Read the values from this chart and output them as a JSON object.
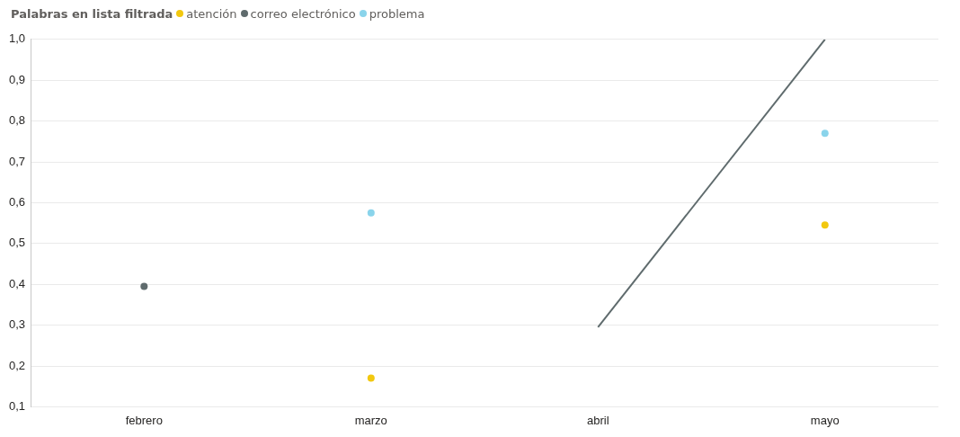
{
  "chart_data": {
    "type": "line",
    "legend_title": "Palabras en lista filtrada",
    "legend": "top left",
    "grid": "y",
    "categories": [
      "febrero",
      "marzo",
      "abril",
      "mayo"
    ],
    "series": [
      {
        "name": "atención",
        "type": "scatter",
        "color": "#f2c80f",
        "values": [
          null,
          0.17,
          null,
          0.545
        ]
      },
      {
        "name": "correo electrónico",
        "color": "#5f6b6d",
        "values": [
          0.395,
          null,
          0.295,
          1.0
        ]
      },
      {
        "name": "problema",
        "type": "scatter",
        "color": "#8ad4eb",
        "values": [
          null,
          0.575,
          null,
          0.77
        ]
      }
    ],
    "ylim": [
      0.1,
      1.0
    ],
    "yticks": [
      {
        "value": 0.1,
        "label": "0,1"
      },
      {
        "value": 0.2,
        "label": "0,2"
      },
      {
        "value": 0.3,
        "label": "0,3"
      },
      {
        "value": 0.4,
        "label": "0,4"
      },
      {
        "value": 0.5,
        "label": "0,5"
      },
      {
        "value": 0.6,
        "label": "0,6"
      },
      {
        "value": 0.7,
        "label": "0,7"
      },
      {
        "value": 0.8,
        "label": "0,8"
      },
      {
        "value": 0.9,
        "label": "0,9"
      },
      {
        "value": 1.0,
        "label": "1,0"
      }
    ]
  }
}
